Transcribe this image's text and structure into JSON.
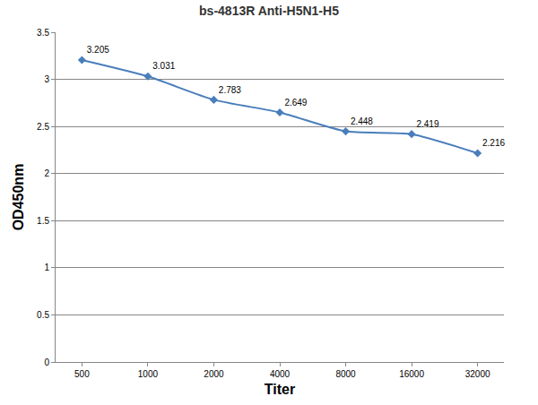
{
  "chart_data": {
    "type": "line",
    "title": "bs-4813R Anti-H5N1-H5",
    "x_label": "Titer",
    "y_label": "OD450nm",
    "categories": [
      "500",
      "1000",
      "2000",
      "4000",
      "8000",
      "16000",
      "32000"
    ],
    "values": [
      3.205,
      3.031,
      2.783,
      2.649,
      2.448,
      2.419,
      2.216
    ],
    "color": "#4a7ebb",
    "marker": "diamond",
    "ylim": [
      0,
      3.5
    ],
    "yticks": [
      0,
      0.5,
      1,
      1.5,
      2,
      2.5,
      3,
      3.5
    ],
    "grid": true,
    "data_labels": true
  }
}
